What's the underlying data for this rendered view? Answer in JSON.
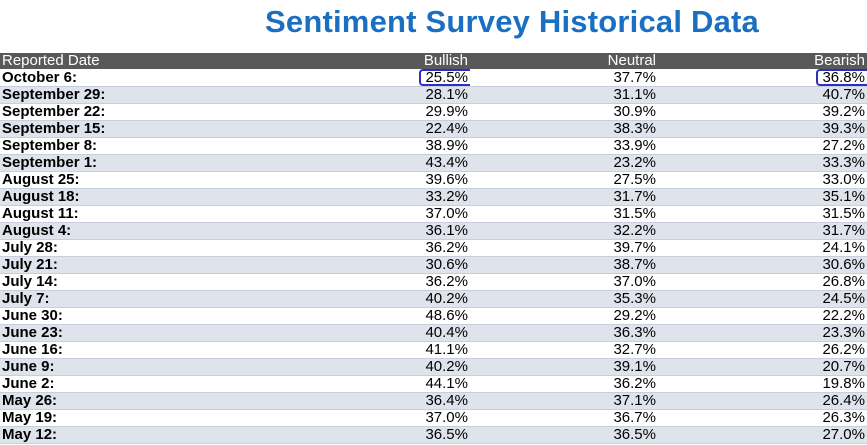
{
  "title": "Sentiment Survey Historical Data",
  "colors": {
    "title": "#1a6fc2",
    "header_bg": "#595959",
    "row_alt": "#dfe3ec",
    "highlight_border": "#2b2fc8"
  },
  "table": {
    "headers": [
      "Reported Date",
      "Bullish",
      "Neutral",
      "Bearish"
    ],
    "rows": [
      [
        "October 6:",
        "25.5%",
        "37.7%",
        "36.8%"
      ],
      [
        "September 29:",
        "28.1%",
        "31.1%",
        "40.7%"
      ],
      [
        "September 22:",
        "29.9%",
        "30.9%",
        "39.2%"
      ],
      [
        "September 15:",
        "22.4%",
        "38.3%",
        "39.3%"
      ],
      [
        "September 8:",
        "38.9%",
        "33.9%",
        "27.2%"
      ],
      [
        "September 1:",
        "43.4%",
        "23.2%",
        "33.3%"
      ],
      [
        "August 25:",
        "39.6%",
        "27.5%",
        "33.0%"
      ],
      [
        "August 18:",
        "33.2%",
        "31.7%",
        "35.1%"
      ],
      [
        "August 11:",
        "37.0%",
        "31.5%",
        "31.5%"
      ],
      [
        "August 4:",
        "36.1%",
        "32.2%",
        "31.7%"
      ],
      [
        "July 28:",
        "36.2%",
        "39.7%",
        "24.1%"
      ],
      [
        "July 21:",
        "30.6%",
        "38.7%",
        "30.6%"
      ],
      [
        "July 14:",
        "36.2%",
        "37.0%",
        "26.8%"
      ],
      [
        "July 7:",
        "40.2%",
        "35.3%",
        "24.5%"
      ],
      [
        "June 30:",
        "48.6%",
        "29.2%",
        "22.2%"
      ],
      [
        "June 23:",
        "40.4%",
        "36.3%",
        "23.3%"
      ],
      [
        "June 16:",
        "41.1%",
        "32.7%",
        "26.2%"
      ],
      [
        "June 9:",
        "40.2%",
        "39.1%",
        "20.7%"
      ],
      [
        "June 2:",
        "44.1%",
        "36.2%",
        "19.8%"
      ],
      [
        "May 26:",
        "36.4%",
        "37.1%",
        "26.4%"
      ],
      [
        "May 19:",
        "37.0%",
        "36.7%",
        "26.3%"
      ],
      [
        "May 12:",
        "36.5%",
        "36.5%",
        "27.0%"
      ]
    ],
    "highlighted_cells": [
      {
        "row": 0,
        "col": 1
      },
      {
        "row": 0,
        "col": 3
      }
    ]
  }
}
